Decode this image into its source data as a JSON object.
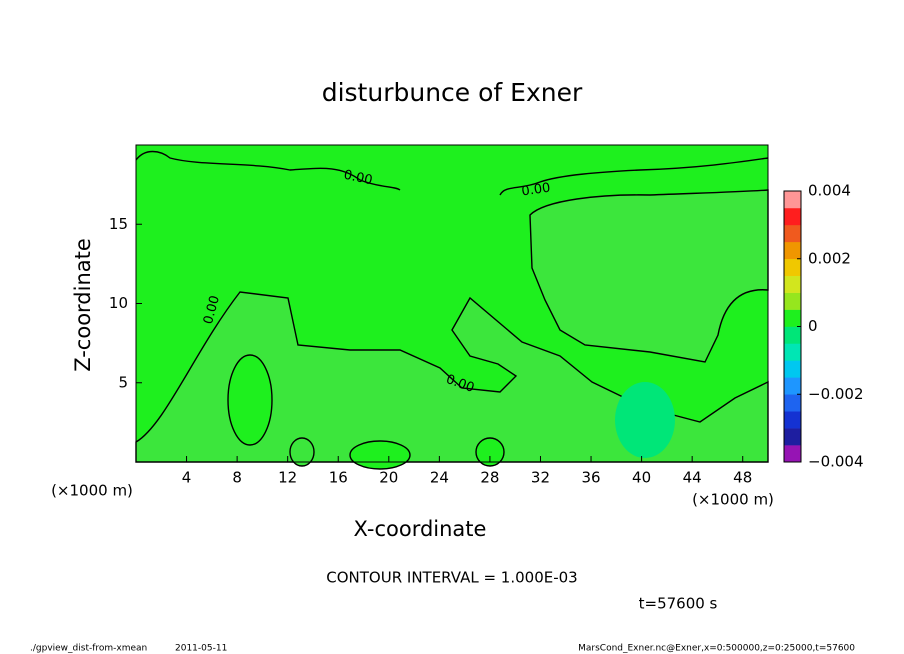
{
  "chart_data": {
    "type": "contour",
    "title": "disturbunce of Exner",
    "xlabel": "X-coordinate",
    "ylabel": "Z-coordinate",
    "axis_unit": "(×1000 m)",
    "xlim": [
      0,
      50
    ],
    "xticks": [
      4,
      8,
      12,
      16,
      20,
      24,
      28,
      32,
      36,
      40,
      44,
      48
    ],
    "ylim": [
      0,
      20
    ],
    "yticks": [
      5,
      10,
      15
    ],
    "clim": [
      -0.004,
      0.004
    ],
    "cticks": [
      {
        "value": -0.004,
        "label": "−0.004"
      },
      {
        "value": -0.002,
        "label": "−0.002"
      },
      0,
      0.002,
      0.004
    ],
    "colors": [
      "#9614b4",
      "#1e1ea0",
      "#1432d2",
      "#1e64f0",
      "#1e96ff",
      "#00c8f0",
      "#00e6b4",
      "#00e678",
      "#1ef01e",
      "#96e61e",
      "#d2e61e",
      "#f0c800",
      "#f09600",
      "#f05a1e",
      "#ff1e1e",
      "#ff9696"
    ],
    "contour_labels": [
      "0.00",
      "0.00",
      "0.00",
      "0.00"
    ],
    "contour_interval": "CONTOUR INTERVAL = 1.000E-03",
    "time_label": "t=57600 s",
    "footer_left": "./gpview_dist-from-xmean",
    "footer_date": "2011-05-11",
    "footer_right": "MarsCond_Exner.nc@Exner,x=0:500000,z=0:25000,t=57600"
  }
}
